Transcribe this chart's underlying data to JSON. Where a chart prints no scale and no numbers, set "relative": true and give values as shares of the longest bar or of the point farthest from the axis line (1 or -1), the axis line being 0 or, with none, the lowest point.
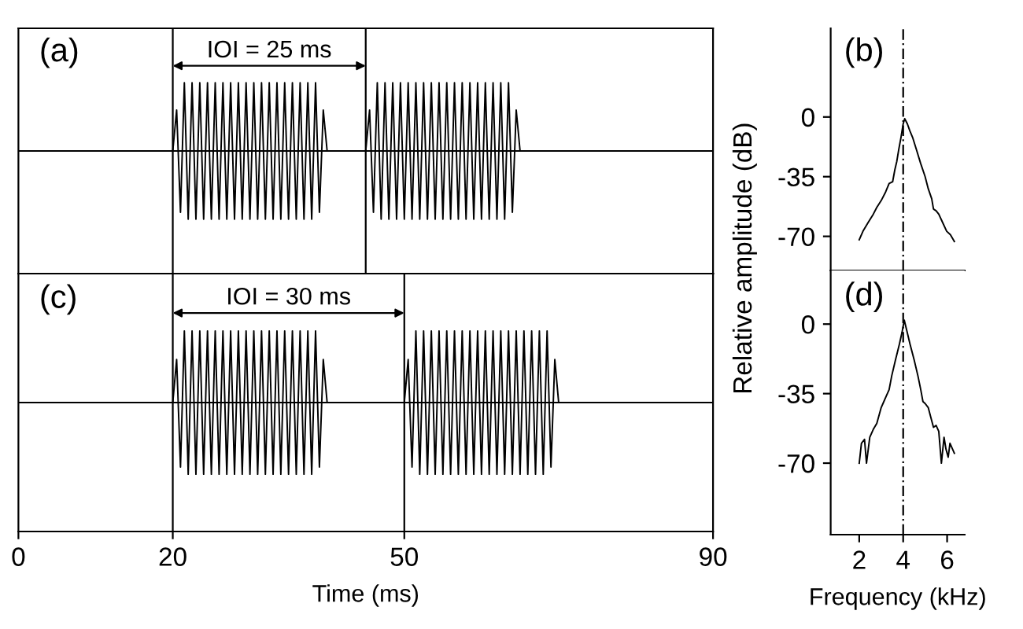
{
  "chart_data": [
    {
      "type": "line",
      "relative": true,
      "xlim": [
        0,
        90
      ],
      "tick_labels": false,
      "annotations": [
        "(a)",
        "IOI = 25 ms"
      ],
      "ref_lines": [
        {
          "axis": "x",
          "value": 20,
          "color": "#000000"
        },
        {
          "axis": "x",
          "value": 45,
          "color": "#000000"
        },
        {
          "axis": "y",
          "value": 0,
          "color": "#000000"
        }
      ],
      "series": [
        {
          "color": "#000000",
          "x": [
            20,
            20.5,
            21,
            21.5,
            22,
            22.5,
            23,
            23.5,
            24,
            24.5,
            25,
            25.5,
            26,
            26.5,
            27,
            27.5,
            28,
            28.5,
            29,
            29.5,
            30,
            30.5,
            31,
            31.5,
            32,
            32.5,
            33,
            33.5,
            34,
            34.5,
            35,
            35.5,
            36,
            36.5,
            37,
            37.5,
            38,
            38.5,
            39,
            39.5,
            40
          ],
          "values": [
            0,
            0.6,
            -0.9,
            1,
            -1,
            1,
            -1,
            1,
            -1,
            1,
            -1,
            1,
            -1,
            1,
            -1,
            1,
            -1,
            1,
            -1,
            1,
            -1,
            1,
            -1,
            1,
            -1,
            1,
            -1,
            1,
            -1,
            1,
            -1,
            1,
            -1,
            1,
            -1,
            1,
            -1,
            1,
            -0.9,
            0.6,
            0
          ]
        },
        {
          "color": "#000000",
          "x": [
            45,
            45.5,
            46,
            46.5,
            47,
            47.5,
            48,
            48.5,
            49,
            49.5,
            50,
            50.5,
            51,
            51.5,
            52,
            52.5,
            53,
            53.5,
            54,
            54.5,
            55,
            55.5,
            56,
            56.5,
            57,
            57.5,
            58,
            58.5,
            59,
            59.5,
            60,
            60.5,
            61,
            61.5,
            62,
            62.5,
            63,
            63.5,
            64,
            64.5,
            65
          ],
          "values": [
            0,
            0.6,
            -0.9,
            1,
            -1,
            1,
            -1,
            1,
            -1,
            1,
            -1,
            1,
            -1,
            1,
            -1,
            1,
            -1,
            1,
            -1,
            1,
            -1,
            1,
            -1,
            1,
            -1,
            1,
            -1,
            1,
            -1,
            1,
            -1,
            1,
            -1,
            1,
            -1,
            1,
            -1,
            1,
            -0.9,
            0.6,
            0
          ]
        }
      ]
    },
    {
      "type": "line",
      "xlim": [
        0.7,
        6.8
      ],
      "ylim": [
        -90,
        52
      ],
      "yticks": [
        0,
        -35,
        -70
      ],
      "tick_labels": "y",
      "ylabel": "Relative amplitude (dB)",
      "annotations": [
        "(b)"
      ],
      "ref_lines": [
        {
          "axis": "x",
          "value": 4,
          "color": "#000000",
          "line_style": "dashed"
        }
      ],
      "series": [
        {
          "color": "#000000",
          "x": [
            2.0,
            2.17,
            2.4,
            2.64,
            2.8,
            3.0,
            3.2,
            3.36,
            3.52,
            3.62,
            3.71,
            3.8,
            3.9,
            4.0,
            4.07,
            4.19,
            4.3,
            4.43,
            4.6,
            4.79,
            5.0,
            5.14,
            5.3,
            5.38,
            5.5,
            5.62,
            5.8,
            5.98,
            6.15,
            6.33
          ],
          "values": [
            -72,
            -67,
            -62,
            -57,
            -53,
            -49,
            -44,
            -39,
            -38,
            -31,
            -26,
            -19,
            -12,
            -4,
            -1,
            -4,
            -8,
            -12,
            -19,
            -27,
            -35,
            -42,
            -48,
            -54,
            -55,
            -57,
            -62,
            -67,
            -69,
            -73
          ]
        }
      ]
    },
    {
      "type": "line",
      "relative": true,
      "xlim": [
        0,
        90
      ],
      "xticks": [
        0,
        20,
        50,
        90
      ],
      "tick_labels": "x",
      "xlabel": "Time (ms)",
      "annotations": [
        "(c)",
        "IOI = 30 ms"
      ],
      "ref_lines": [
        {
          "axis": "x",
          "value": 20,
          "color": "#000000"
        },
        {
          "axis": "x",
          "value": 50,
          "color": "#000000"
        },
        {
          "axis": "y",
          "value": 0,
          "color": "#000000"
        }
      ],
      "series": [
        {
          "color": "#000000",
          "x": [
            20,
            20.5,
            21,
            21.5,
            22,
            22.5,
            23,
            23.5,
            24,
            24.5,
            25,
            25.5,
            26,
            26.5,
            27,
            27.5,
            28,
            28.5,
            29,
            29.5,
            30,
            30.5,
            31,
            31.5,
            32,
            32.5,
            33,
            33.5,
            34,
            34.5,
            35,
            35.5,
            36,
            36.5,
            37,
            37.5,
            38,
            38.5,
            39,
            39.5,
            40
          ],
          "values": [
            0,
            0.6,
            -0.9,
            1,
            -1,
            1,
            -1,
            1,
            -1,
            1,
            -1,
            1,
            -1,
            1,
            -1,
            1,
            -1,
            1,
            -1,
            1,
            -1,
            1,
            -1,
            1,
            -1,
            1,
            -1,
            1,
            -1,
            1,
            -1,
            1,
            -1,
            1,
            -1,
            1,
            -1,
            1,
            -0.9,
            0.6,
            0
          ]
        },
        {
          "color": "#000000",
          "x": [
            50,
            50.5,
            51,
            51.5,
            52,
            52.5,
            53,
            53.5,
            54,
            54.5,
            55,
            55.5,
            56,
            56.5,
            57,
            57.5,
            58,
            58.5,
            59,
            59.5,
            60,
            60.5,
            61,
            61.5,
            62,
            62.5,
            63,
            63.5,
            64,
            64.5,
            65,
            65.5,
            66,
            66.5,
            67,
            67.5,
            68,
            68.5,
            69,
            69.5,
            70
          ],
          "values": [
            0,
            0.6,
            -0.9,
            1,
            -1,
            1,
            -1,
            1,
            -1,
            1,
            -1,
            1,
            -1,
            1,
            -1,
            1,
            -1,
            1,
            -1,
            1,
            -1,
            1,
            -1,
            1,
            -1,
            1,
            -1,
            1,
            -1,
            1,
            -1,
            1,
            -1,
            1,
            -1,
            1,
            -1,
            1,
            -0.9,
            0.6,
            0
          ]
        }
      ]
    },
    {
      "type": "line",
      "xlim": [
        0.7,
        6.8
      ],
      "ylim": [
        -106,
        27
      ],
      "xticks": [
        2,
        4,
        6
      ],
      "yticks": [
        0,
        -35,
        -70
      ],
      "xlabel": "Frequency (kHz)",
      "annotations": [
        "(d)"
      ],
      "ref_lines": [
        {
          "axis": "x",
          "value": 4,
          "color": "#000000",
          "line_style": "dashed"
        }
      ],
      "series": [
        {
          "color": "#000000",
          "x": [
            2.0,
            2.1,
            2.24,
            2.33,
            2.48,
            2.64,
            2.8,
            3.0,
            3.12,
            3.24,
            3.36,
            3.48,
            3.65,
            3.83,
            3.95,
            4.05,
            4.18,
            4.31,
            4.5,
            4.67,
            4.8,
            4.9,
            5.0,
            5.14,
            5.26,
            5.38,
            5.5,
            5.62,
            5.74,
            5.86,
            5.95,
            6.05,
            6.13,
            6.21,
            6.33
          ],
          "values": [
            -70,
            -60,
            -58,
            -70,
            -57,
            -53,
            -50,
            -42,
            -39,
            -36,
            -33,
            -26,
            -18,
            -10,
            -4,
            2,
            -4,
            -10,
            -18,
            -26,
            -33,
            -39,
            -40,
            -42,
            -47,
            -52,
            -51,
            -54,
            -70,
            -57,
            -63,
            -67,
            -60,
            -62,
            -65
          ]
        }
      ]
    }
  ]
}
